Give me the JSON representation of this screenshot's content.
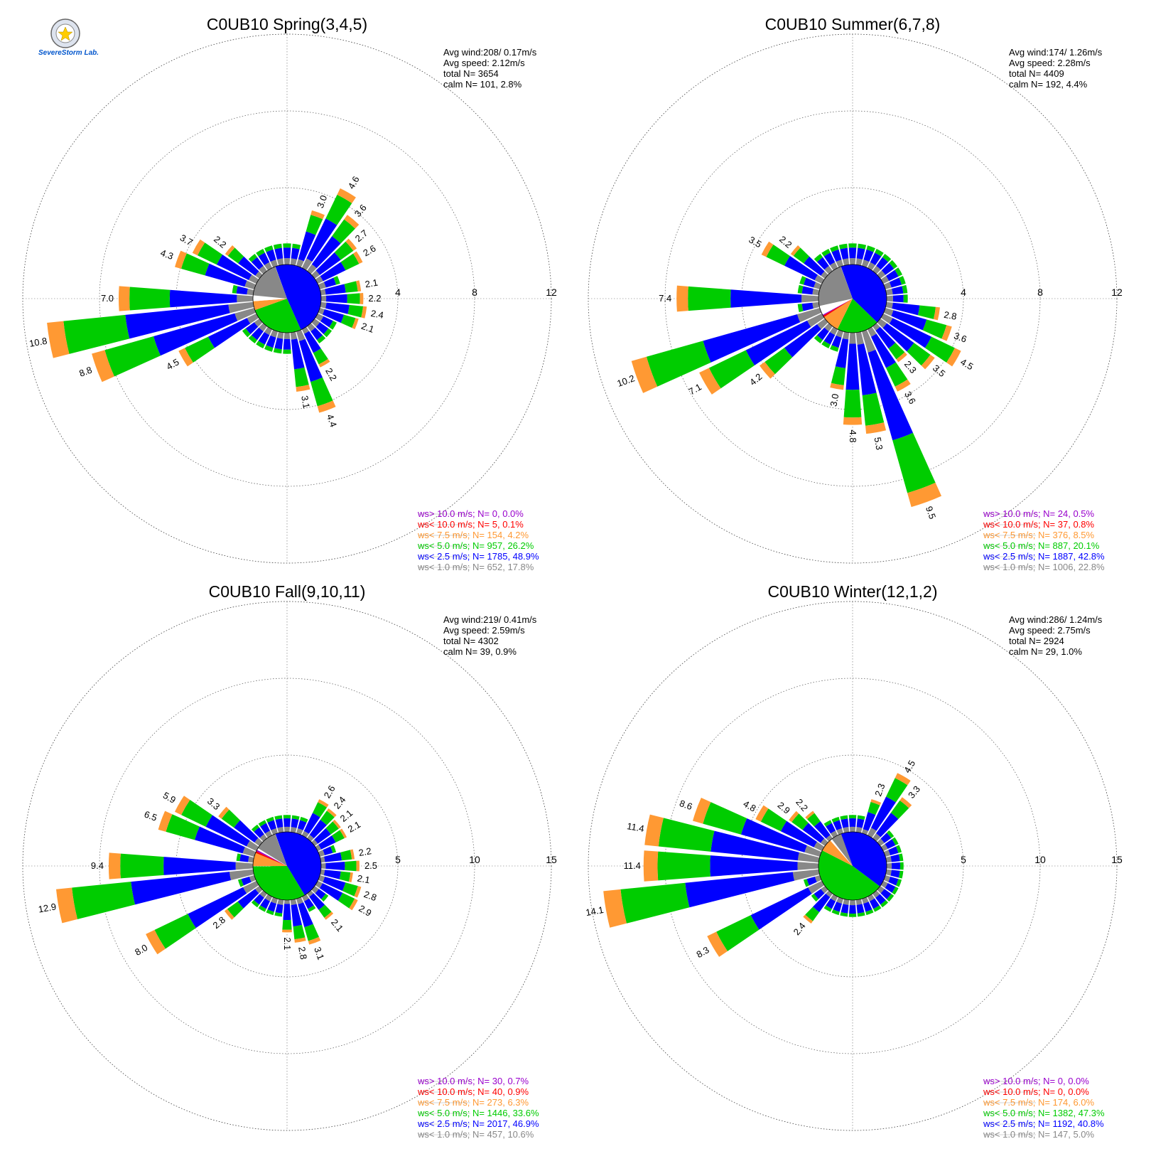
{
  "colors": {
    "calm": "#ffffff",
    "lt1": "#888888",
    "lt2_5": "#0000ff",
    "lt5": "#00cc00",
    "lt7_5": "#ff9933",
    "lt10": "#ff0000",
    "gt10": "#9900cc"
  },
  "logo": {
    "icon": "severe-storm-lab-logo",
    "text": "SevereStorm Lab."
  },
  "chart_data": [
    {
      "type": "wind-rose",
      "title": "C0UB10 Spring(3,4,5)",
      "stats": {
        "avg_wind": "Avg wind:208/ 0.17m/s",
        "avg_speed": "Avg speed: 2.12m/s",
        "total": "total N=       3654",
        "calm": "calm N=    101,   2.8%"
      },
      "ring_labels": [
        "4",
        "8",
        "12"
      ],
      "rmax": 12,
      "pie": [
        {
          "cls": "lt2_5",
          "frac": 0.489
        },
        {
          "cls": "lt5",
          "frac": 0.262
        },
        {
          "cls": "lt7_5",
          "frac": 0.042
        },
        {
          "cls": "calm",
          "frac": 0.028
        },
        {
          "cls": "lt1",
          "frac": 0.178
        }
      ],
      "bars": [
        {
          "dir": 20,
          "total": 3.0,
          "label": "3.0"
        },
        {
          "dir": 30,
          "total": 4.6,
          "label": "4.6"
        },
        {
          "dir": 40,
          "total": 3.6,
          "label": "3.6"
        },
        {
          "dir": 50,
          "total": 2.7,
          "label": "2.7"
        },
        {
          "dir": 60,
          "total": 2.6,
          "label": "2.6"
        },
        {
          "dir": 80,
          "total": 2.1,
          "label": "2.1"
        },
        {
          "dir": 90,
          "total": 2.2,
          "label": "2.2"
        },
        {
          "dir": 100,
          "total": 2.4,
          "label": "2.4"
        },
        {
          "dir": 110,
          "total": 2.1,
          "label": "2.1"
        },
        {
          "dir": 150,
          "total": 2.2,
          "label": "2.2"
        },
        {
          "dir": 160,
          "total": 4.4,
          "label": "4.4"
        },
        {
          "dir": 170,
          "total": 3.1,
          "label": "3.1"
        },
        {
          "dir": 240,
          "total": 4.5,
          "label": "4.5"
        },
        {
          "dir": 250,
          "total": 8.8,
          "label": "8.8"
        },
        {
          "dir": 260,
          "total": 10.8,
          "label": "10.8"
        },
        {
          "dir": 270,
          "total": 7.0,
          "label": "7.0"
        },
        {
          "dir": 290,
          "total": 4.3,
          "label": "4.3"
        },
        {
          "dir": 300,
          "total": 3.7,
          "label": "3.7"
        },
        {
          "dir": 310,
          "total": 2.2,
          "label": "2.2"
        }
      ],
      "legend": [
        {
          "text": "ws> 10.0 m/s; N=     0,  0.0%",
          "cls": "gt10"
        },
        {
          "text": "ws< 10.0 m/s; N=     5,  0.1%",
          "cls": "lt10"
        },
        {
          "text": "ws<  7.5 m/s; N=   154,  4.2%",
          "cls": "lt7_5"
        },
        {
          "text": "ws<  5.0 m/s; N=   957, 26.2%",
          "cls": "lt5"
        },
        {
          "text": "ws<  2.5 m/s; N=  1785, 48.9%",
          "cls": "lt2_5"
        },
        {
          "text": "ws<  1.0 m/s; N=   652, 17.8%",
          "cls": "lt1"
        }
      ]
    },
    {
      "type": "wind-rose",
      "title": "C0UB10 Summer(6,7,8)",
      "stats": {
        "avg_wind": "Avg wind:174/ 1.26m/s",
        "avg_speed": "Avg speed: 2.28m/s",
        "total": "total N=       4409",
        "calm": "calm N=    192,   4.4%"
      },
      "ring_labels": [
        "4",
        "8",
        "12"
      ],
      "rmax": 12,
      "pie": [
        {
          "cls": "lt2_5",
          "frac": 0.428
        },
        {
          "cls": "lt5",
          "frac": 0.201
        },
        {
          "cls": "lt7_5",
          "frac": 0.085
        },
        {
          "cls": "lt10",
          "frac": 0.008
        },
        {
          "cls": "gt10",
          "frac": 0.005
        },
        {
          "cls": "calm",
          "frac": 0.044
        },
        {
          "cls": "lt1",
          "frac": 0.228
        }
      ],
      "bars": [
        {
          "dir": 100,
          "total": 2.8,
          "label": "2.8"
        },
        {
          "dir": 110,
          "total": 3.6,
          "label": "3.6"
        },
        {
          "dir": 120,
          "total": 4.5,
          "label": "4.5"
        },
        {
          "dir": 130,
          "total": 3.5,
          "label": "3.5"
        },
        {
          "dir": 140,
          "total": 2.3,
          "label": "2.3"
        },
        {
          "dir": 150,
          "total": 3.6,
          "label": "3.6"
        },
        {
          "dir": 160,
          "total": 9.5,
          "label": "9.5"
        },
        {
          "dir": 170,
          "total": 5.3,
          "label": "5.3"
        },
        {
          "dir": 180,
          "total": 4.8,
          "label": "4.8"
        },
        {
          "dir": 190,
          "total": 3.0,
          "label": "3.0"
        },
        {
          "dir": 230,
          "total": 4.2,
          "label": "4.2"
        },
        {
          "dir": 240,
          "total": 7.1,
          "label": "7.1"
        },
        {
          "dir": 250,
          "total": 10.2,
          "label": "10.2"
        },
        {
          "dir": 270,
          "total": 7.4,
          "label": "7.4"
        },
        {
          "dir": 300,
          "total": 3.5,
          "label": "3.5"
        },
        {
          "dir": 310,
          "total": 2.2,
          "label": "2.2"
        }
      ],
      "legend": [
        {
          "text": "ws> 10.0 m/s; N=    24,  0.5%",
          "cls": "gt10"
        },
        {
          "text": "ws< 10.0 m/s; N=    37,  0.8%",
          "cls": "lt10"
        },
        {
          "text": "ws<  7.5 m/s; N=   376,  8.5%",
          "cls": "lt7_5"
        },
        {
          "text": "ws<  5.0 m/s; N=   887, 20.1%",
          "cls": "lt5"
        },
        {
          "text": "ws<  2.5 m/s; N=  1887, 42.8%",
          "cls": "lt2_5"
        },
        {
          "text": "ws<  1.0 m/s; N=  1006, 22.8%",
          "cls": "lt1"
        }
      ]
    },
    {
      "type": "wind-rose",
      "title": "C0UB10 Fall(9,10,11)",
      "stats": {
        "avg_wind": "Avg wind:219/ 0.41m/s",
        "avg_speed": "Avg speed: 2.59m/s",
        "total": "total N=       4302",
        "calm": "calm N=     39,   0.9%"
      },
      "ring_labels": [
        "5",
        "10",
        "15"
      ],
      "rmax": 15,
      "pie": [
        {
          "cls": "lt2_5",
          "frac": 0.469
        },
        {
          "cls": "lt5",
          "frac": 0.336
        },
        {
          "cls": "lt7_5",
          "frac": 0.063
        },
        {
          "cls": "lt10",
          "frac": 0.009
        },
        {
          "cls": "gt10",
          "frac": 0.007
        },
        {
          "cls": "calm",
          "frac": 0.009
        },
        {
          "cls": "lt1",
          "frac": 0.106
        }
      ],
      "bars": [
        {
          "dir": 30,
          "total": 2.6,
          "label": "2.6"
        },
        {
          "dir": 40,
          "total": 2.4,
          "label": "2.4"
        },
        {
          "dir": 50,
          "total": 2.1,
          "label": "2.1"
        },
        {
          "dir": 60,
          "total": 2.1,
          "label": "2.1"
        },
        {
          "dir": 80,
          "total": 2.2,
          "label": "2.2"
        },
        {
          "dir": 90,
          "total": 2.5,
          "label": "2.5"
        },
        {
          "dir": 100,
          "total": 2.1,
          "label": "2.1"
        },
        {
          "dir": 110,
          "total": 2.8,
          "label": "2.8"
        },
        {
          "dir": 120,
          "total": 2.9,
          "label": "2.9"
        },
        {
          "dir": 140,
          "total": 2.1,
          "label": "2.1"
        },
        {
          "dir": 160,
          "total": 3.1,
          "label": "3.1"
        },
        {
          "dir": 170,
          "total": 2.8,
          "label": "2.8"
        },
        {
          "dir": 180,
          "total": 2.1,
          "label": "2.1"
        },
        {
          "dir": 230,
          "total": 2.8,
          "label": "2.8"
        },
        {
          "dir": 240,
          "total": 8.0,
          "label": "8.0"
        },
        {
          "dir": 260,
          "total": 12.9,
          "label": "12.9"
        },
        {
          "dir": 270,
          "total": 9.4,
          "label": "9.4"
        },
        {
          "dir": 290,
          "total": 6.5,
          "label": "6.5"
        },
        {
          "dir": 300,
          "total": 5.9,
          "label": "5.9"
        },
        {
          "dir": 310,
          "total": 3.3,
          "label": "3.3"
        }
      ],
      "legend": [
        {
          "text": "ws> 10.0 m/s; N=    30,  0.7%",
          "cls": "gt10"
        },
        {
          "text": "ws< 10.0 m/s; N=    40,  0.9%",
          "cls": "lt10"
        },
        {
          "text": "ws<  7.5 m/s; N=   273,  6.3%",
          "cls": "lt7_5"
        },
        {
          "text": "ws<  5.0 m/s; N=  1446, 33.6%",
          "cls": "lt5"
        },
        {
          "text": "ws<  2.5 m/s; N=  2017, 46.9%",
          "cls": "lt2_5"
        },
        {
          "text": "ws<  1.0 m/s; N=   457, 10.6%",
          "cls": "lt1"
        }
      ]
    },
    {
      "type": "wind-rose",
      "title": "C0UB10 Winter(12,1,2)",
      "stats": {
        "avg_wind": "Avg wind:286/ 1.24m/s",
        "avg_speed": "Avg speed: 2.75m/s",
        "total": "total N=       2924",
        "calm": "calm N=     29,   1.0%"
      },
      "ring_labels": [
        "5",
        "10",
        "15"
      ],
      "rmax": 15,
      "pie": [
        {
          "cls": "lt2_5",
          "frac": 0.408
        },
        {
          "cls": "lt5",
          "frac": 0.473
        },
        {
          "cls": "lt7_5",
          "frac": 0.06
        },
        {
          "cls": "calm",
          "frac": 0.01
        },
        {
          "cls": "lt1",
          "frac": 0.05
        }
      ],
      "bars": [
        {
          "dir": 20,
          "total": 2.3,
          "label": "2.3"
        },
        {
          "dir": 30,
          "total": 4.5,
          "label": "4.5"
        },
        {
          "dir": 40,
          "total": 3.3,
          "label": "3.3"
        },
        {
          "dir": 220,
          "total": 2.4,
          "label": "2.4"
        },
        {
          "dir": 240,
          "total": 8.3,
          "label": "8.3"
        },
        {
          "dir": 260,
          "total": 14.1,
          "label": "14.1"
        },
        {
          "dir": 270,
          "total": 11.4,
          "label": "11.4"
        },
        {
          "dir": 280,
          "total": 11.4,
          "label": "11.4"
        },
        {
          "dir": 290,
          "total": 8.6,
          "label": "8.6"
        },
        {
          "dir": 300,
          "total": 4.8,
          "label": "4.8"
        },
        {
          "dir": 310,
          "total": 2.9,
          "label": "2.9"
        },
        {
          "dir": 320,
          "total": 2.2,
          "label": "2.2"
        }
      ],
      "legend": [
        {
          "text": "ws> 10.0 m/s; N=     0,  0.0%",
          "cls": "gt10"
        },
        {
          "text": "ws< 10.0 m/s; N=     0,  0.0%",
          "cls": "lt10"
        },
        {
          "text": "ws<  7.5 m/s; N=   174,  6.0%",
          "cls": "lt7_5"
        },
        {
          "text": "ws<  5.0 m/s; N=  1382, 47.3%",
          "cls": "lt5"
        },
        {
          "text": "ws<  2.5 m/s; N=  1192, 40.8%",
          "cls": "lt2_5"
        },
        {
          "text": "ws<  1.0 m/s; N=   147,  5.0%",
          "cls": "lt1"
        }
      ]
    }
  ]
}
